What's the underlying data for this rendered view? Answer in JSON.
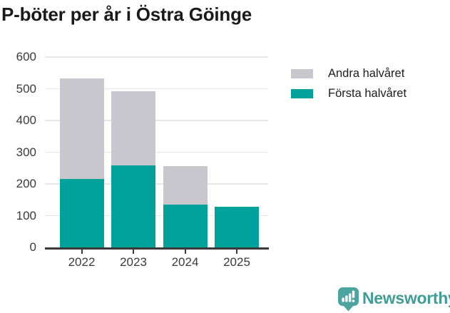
{
  "chart_data": {
    "type": "bar",
    "stacked": true,
    "title": "P-böter per år i Östra Göinge",
    "categories": [
      "2022",
      "2023",
      "2024",
      "2025"
    ],
    "series": [
      {
        "name": "Första halvåret",
        "color": "#00a29b",
        "values": [
          215,
          258,
          135,
          128
        ]
      },
      {
        "name": "Andra halvåret",
        "color": "#c9c7ce",
        "values": [
          317,
          234,
          122,
          0
        ]
      }
    ],
    "totals": [
      532,
      492,
      257,
      128
    ],
    "xlabel": "",
    "ylabel": "",
    "ylim": [
      0,
      600
    ],
    "yticks": [
      0,
      100,
      200,
      300,
      400,
      500,
      600
    ],
    "grid": "horizontal",
    "legend_position": "right"
  },
  "legend": {
    "items": [
      {
        "label": "Andra halvåret",
        "color": "#c9c7ce"
      },
      {
        "label": "Första halvåret",
        "color": "#00a29b"
      }
    ]
  },
  "footer": {
    "brand": "Newsworthy",
    "logo_icon": "bar-chart-speech-bubble-icon"
  },
  "colors": {
    "first_half": "#00a29b",
    "second_half": "#c9c7ce",
    "grid": "#e7e5e8",
    "axis": "#3a3a3a",
    "title_text": "#1a1a1a",
    "brand_teal": "#3f9d96"
  }
}
